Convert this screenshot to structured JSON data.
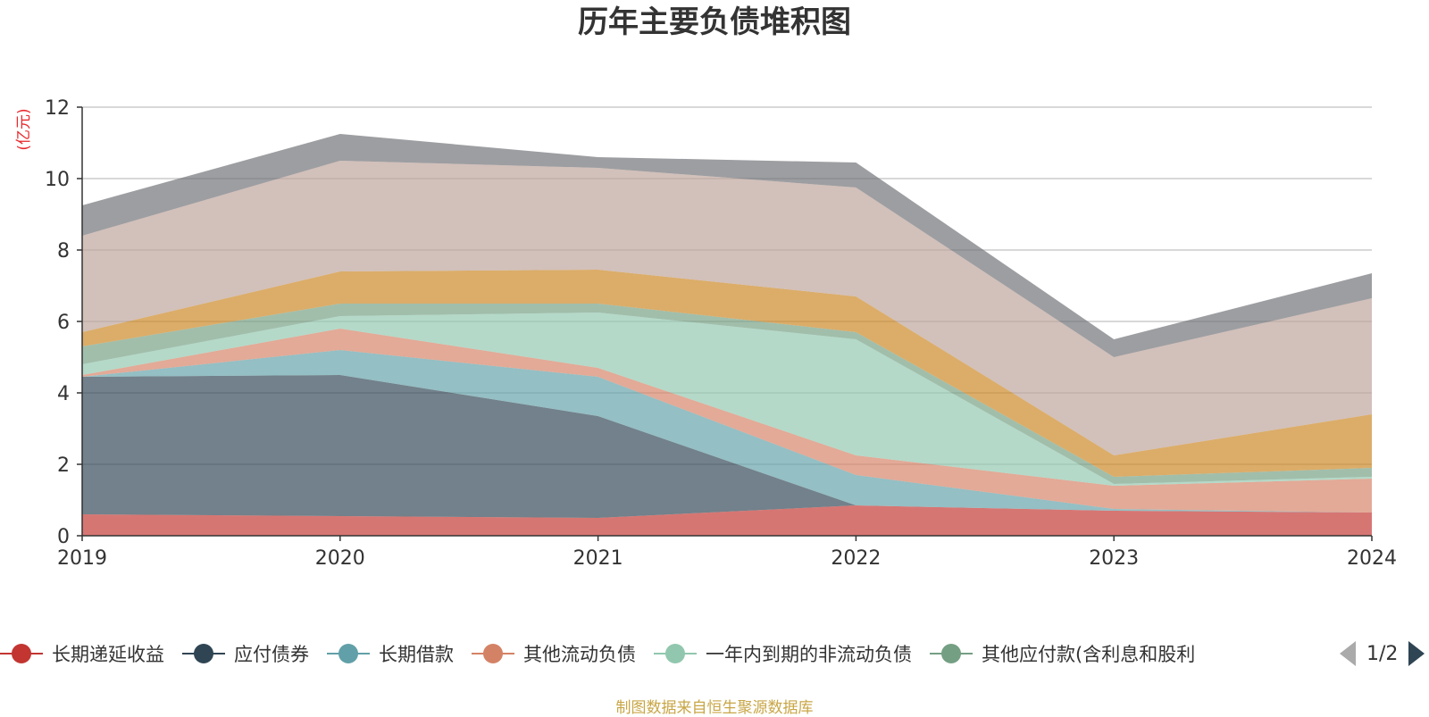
{
  "chart_data": {
    "type": "area",
    "stacked": true,
    "title": "历年主要负债堆积图",
    "unit_label": "(亿元)",
    "x": [
      "2019",
      "2020",
      "2021",
      "2022",
      "2023",
      "2024"
    ],
    "ylim": [
      0,
      12
    ],
    "yticks": [
      "0",
      "2",
      "4",
      "6",
      "8",
      "10",
      "12"
    ],
    "grid": true,
    "series": [
      {
        "name": "长期递延收益",
        "color": "#c23531",
        "values": [
          0.6,
          0.55,
          0.5,
          0.85,
          0.7,
          0.65
        ]
      },
      {
        "name": "应付债券",
        "color": "#2f4554",
        "values": [
          3.85,
          3.95,
          2.85,
          0.0,
          0.0,
          0.0
        ]
      },
      {
        "name": "长期借款",
        "color": "#61a0a8",
        "values": [
          0.0,
          0.7,
          1.1,
          0.85,
          0.05,
          0.0
        ]
      },
      {
        "name": "其他流动负债",
        "color": "#d48265",
        "values": [
          0.05,
          0.6,
          0.25,
          0.55,
          0.65,
          0.95
        ]
      },
      {
        "name": "一年内到期的非流动负债",
        "color": "#91c7ae",
        "values": [
          0.3,
          0.35,
          1.55,
          3.25,
          0.05,
          0.05
        ]
      },
      {
        "name": "其他应付款(含利息和股利)",
        "color": "#749f83",
        "values": [
          0.5,
          0.35,
          0.25,
          0.2,
          0.2,
          0.25
        ]
      },
      {
        "name": "",
        "color": "#ca8622",
        "values": [
          0.4,
          0.9,
          0.95,
          1.0,
          0.6,
          1.5
        ]
      },
      {
        "name": "",
        "color": "#bda29a",
        "values": [
          2.7,
          3.1,
          2.85,
          3.05,
          2.75,
          3.25
        ]
      },
      {
        "name": "",
        "color": "#6e7074",
        "values": [
          0.85,
          0.75,
          0.3,
          0.7,
          0.5,
          0.7
        ]
      }
    ]
  },
  "legend": {
    "items": [
      "长期递延收益",
      "应付债券",
      "长期借款",
      "其他流动负债",
      "一年内到期的非流动负债",
      "其他应付款(含利息和股利"
    ],
    "colors": [
      "#c23531",
      "#2f4554",
      "#61a0a8",
      "#d48265",
      "#91c7ae",
      "#749f83"
    ],
    "page": "1/2"
  },
  "source": "制图数据来自恒生聚源数据库"
}
